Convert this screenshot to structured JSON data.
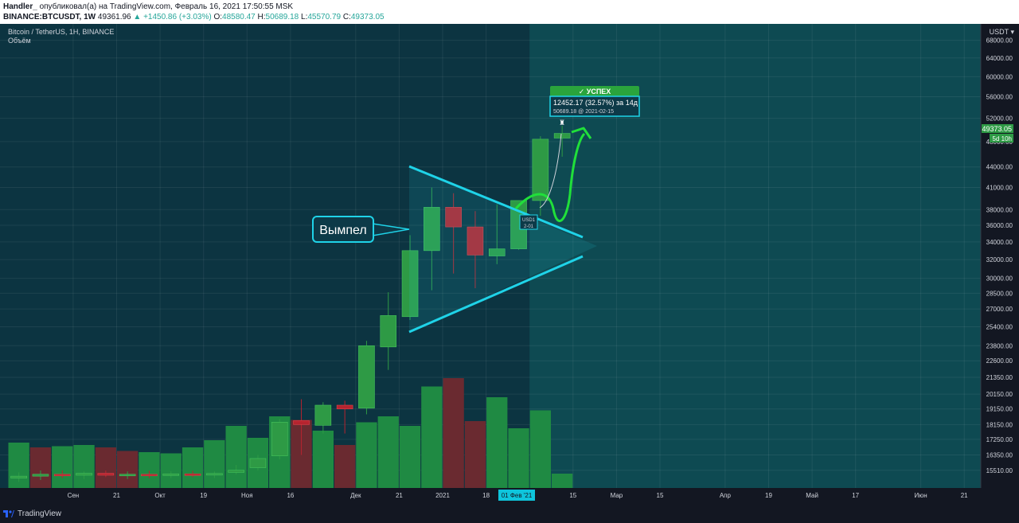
{
  "header": {
    "author": "Handler_",
    "published_text": "опубликовал(а) на TradingView.com, Февраль 16, 2021 17:50:55 MSK",
    "symbol": "BINANCE:BTCUSDT, 1W",
    "last": "49361.96",
    "change": "▲ +1450.86 (+3.03%)",
    "o_label": "O:",
    "o": "48580.47",
    "h_label": "H:",
    "h": "50689.18",
    "l_label": "L:",
    "l": "45570.79",
    "c_label": "C:",
    "c": "49373.05"
  },
  "legend": {
    "title": "Bitcoin / TetherUS, 1H, BINANCE",
    "volume": "Объём"
  },
  "price_axis": {
    "currency": "USDT ▾",
    "current_price": "49373.05",
    "countdown": "5d 10h"
  },
  "annotations": {
    "pennant_label": "Вымпел",
    "success_label": "✓ УСПЕХ",
    "measure_line1": "12452.17 (32.57%) за 14д",
    "measure_line2": "50689.18 @ 2021-02-15",
    "small_box_line1": "USD1",
    "small_box_line2": "2-01"
  },
  "time_axis_highlight": "01 Фев '21",
  "footer": {
    "brand": "TradingView"
  },
  "colors": {
    "background": "#0c3441",
    "future_zone": "#0e4a52",
    "up": "#2e9a45",
    "down": "#b5242f",
    "vol_up": "#1f8a43",
    "vol_down": "#6a2a30",
    "pennant": "#1fd3e8",
    "arrow": "#20e03a"
  },
  "chart_data": {
    "type": "candlestick",
    "title": "Bitcoin / TetherUS, 1H, BINANCE",
    "y_scale": "log",
    "ylim": [
      15000,
      70000
    ],
    "y_ticks": [
      15510,
      16350,
      17250,
      18150,
      19150,
      20150,
      21350,
      22600,
      23800,
      25400,
      27000,
      28500,
      30000,
      32000,
      34000,
      36000,
      38000,
      41000,
      44000,
      48000,
      52000,
      56000,
      60000,
      64000,
      68000
    ],
    "x_ticks": [
      {
        "i": 2.5,
        "label": "Сен"
      },
      {
        "i": 4.5,
        "label": "21"
      },
      {
        "i": 6.5,
        "label": "Окт"
      },
      {
        "i": 8.5,
        "label": "19"
      },
      {
        "i": 10.5,
        "label": "Ноя"
      },
      {
        "i": 12.5,
        "label": "16"
      },
      {
        "i": 15.5,
        "label": "Дек"
      },
      {
        "i": 17.5,
        "label": "21"
      },
      {
        "i": 19.5,
        "label": "2021"
      },
      {
        "i": 21.5,
        "label": "18"
      },
      {
        "i": 25.5,
        "label": "15"
      },
      {
        "i": 27.5,
        "label": "Мар"
      },
      {
        "i": 29.5,
        "label": "15"
      },
      {
        "i": 32.5,
        "label": "Апр"
      },
      {
        "i": 34.5,
        "label": "19"
      },
      {
        "i": 36.5,
        "label": "Май"
      },
      {
        "i": 38.5,
        "label": "17"
      },
      {
        "i": 41.5,
        "label": "Июн"
      },
      {
        "i": 43.5,
        "label": "21"
      }
    ],
    "candles": [
      {
        "o": 15100,
        "h": 15400,
        "l": 14900,
        "c": 15200
      },
      {
        "o": 15200,
        "h": 15500,
        "l": 15000,
        "c": 15300
      },
      {
        "o": 15300,
        "h": 15500,
        "l": 15100,
        "c": 15250
      },
      {
        "o": 15250,
        "h": 15450,
        "l": 15050,
        "c": 15350
      },
      {
        "o": 15350,
        "h": 15500,
        "l": 15150,
        "c": 15250
      },
      {
        "o": 15250,
        "h": 15450,
        "l": 15050,
        "c": 15300
      },
      {
        "o": 15300,
        "h": 15480,
        "l": 15100,
        "c": 15280
      },
      {
        "o": 15280,
        "h": 15450,
        "l": 15100,
        "c": 15320
      },
      {
        "o": 15320,
        "h": 15480,
        "l": 15150,
        "c": 15300
      },
      {
        "o": 15300,
        "h": 15450,
        "l": 15100,
        "c": 15340
      },
      {
        "o": 15400,
        "h": 15800,
        "l": 15300,
        "c": 15510
      },
      {
        "o": 15650,
        "h": 16350,
        "l": 15500,
        "c": 16150
      },
      {
        "o": 16300,
        "h": 18500,
        "l": 16100,
        "c": 18300
      },
      {
        "o": 18400,
        "h": 19800,
        "l": 16350,
        "c": 18150
      },
      {
        "o": 18100,
        "h": 19600,
        "l": 17600,
        "c": 19400
      },
      {
        "o": 19400,
        "h": 19700,
        "l": 17600,
        "c": 19150
      },
      {
        "o": 19200,
        "h": 24200,
        "l": 18800,
        "c": 23800
      },
      {
        "o": 23700,
        "h": 28600,
        "l": 21900,
        "c": 26400
      },
      {
        "o": 26300,
        "h": 34800,
        "l": 26000,
        "c": 33000
      },
      {
        "o": 33000,
        "h": 41000,
        "l": 28800,
        "c": 38300
      },
      {
        "o": 38300,
        "h": 40200,
        "l": 30500,
        "c": 35800
      },
      {
        "o": 35800,
        "h": 37800,
        "l": 29000,
        "c": 32500
      },
      {
        "o": 32400,
        "h": 38700,
        "l": 31500,
        "c": 33200
      },
      {
        "o": 33200,
        "h": 38900,
        "l": 33100,
        "c": 39200
      },
      {
        "o": 39200,
        "h": 48900,
        "l": 37200,
        "c": 48400
      },
      {
        "o": 48580.47,
        "h": 50689.18,
        "l": 45570.79,
        "c": 49373.05
      }
    ],
    "volume": {
      "ylim": [
        0,
        100
      ],
      "values": [
        38,
        34,
        35,
        36,
        34,
        31,
        30,
        29,
        34,
        40,
        52,
        42,
        60,
        57,
        48,
        36,
        55,
        60,
        52,
        85,
        92,
        56,
        76,
        50,
        65,
        12
      ],
      "dir": [
        "up",
        "down",
        "up",
        "up",
        "down",
        "down",
        "up",
        "up",
        "up",
        "up",
        "up",
        "up",
        "up",
        "down",
        "up",
        "down",
        "up",
        "up",
        "up",
        "up",
        "down",
        "down",
        "up",
        "up",
        "up",
        "up"
      ]
    }
  }
}
